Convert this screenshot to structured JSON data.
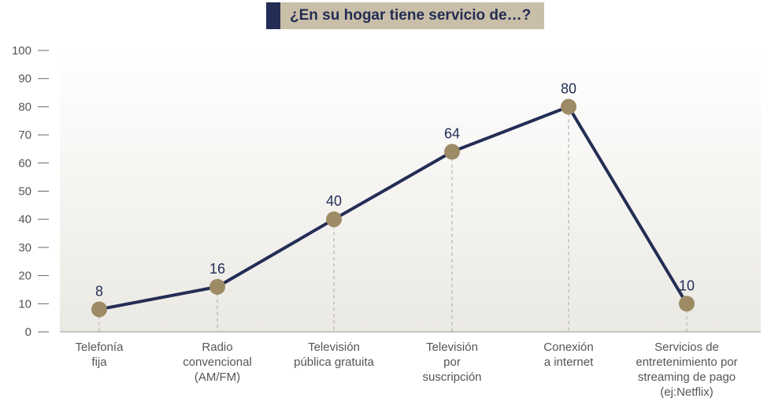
{
  "chart_data": {
    "type": "line",
    "title": "¿En su hogar tiene servicio de…?",
    "categories": [
      "Telefonía\nfija",
      "Radio\nconvencional\n(AM/FM)",
      "Televisión\npública gratuita",
      "Televisión\npor\nsuscripción",
      "Conexión\na internet",
      "Servicios de\nentretenimiento por\nstreaming de pago\n(ej:Netflix)"
    ],
    "series": [
      {
        "values": [
          8,
          16,
          40,
          64,
          80,
          10
        ]
      }
    ],
    "ylim": [
      0,
      100
    ],
    "yticks": [
      0,
      10,
      20,
      30,
      40,
      50,
      60,
      70,
      80,
      90,
      100
    ],
    "grid": false,
    "colors": {
      "line": "#232d55",
      "marker": "#9c8b65",
      "title_bg": "#c9bfa8",
      "title_accent": "#232d55"
    }
  }
}
